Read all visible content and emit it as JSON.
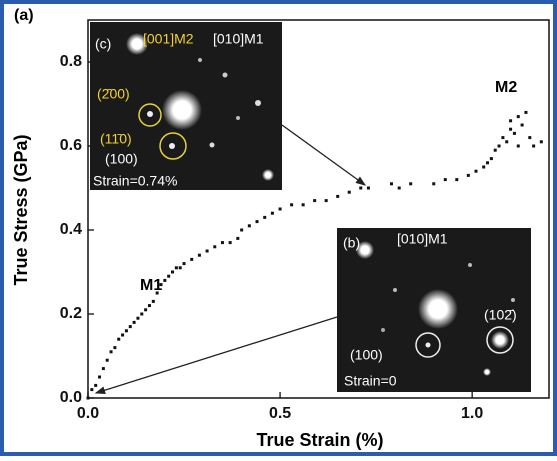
{
  "chart_data": {
    "type": "scatter",
    "panel_label": "(a)",
    "x_label": "True Strain (%)",
    "y_label": "True Stress (GPa)",
    "xlim": [
      0,
      1.2
    ],
    "ylim": [
      0,
      0.9
    ],
    "xticks": [
      {
        "value": 0,
        "label": "0.0"
      },
      0.5,
      {
        "value": 1,
        "label": "1.0"
      }
    ],
    "yticks": [
      {
        "value": 0,
        "label": "0.0"
      },
      0.2,
      0.4,
      0.6,
      0.8
    ],
    "color": "#111111",
    "x": [
      0.0,
      0.01,
      0.02,
      0.03,
      0.04,
      0.05,
      0.06,
      0.07,
      0.08,
      0.09,
      0.1,
      0.11,
      0.12,
      0.13,
      0.14,
      0.15,
      0.16,
      0.17,
      0.18,
      0.19,
      0.2,
      0.21,
      0.22,
      0.23,
      0.24,
      0.25,
      0.27,
      0.29,
      0.31,
      0.33,
      0.35,
      0.37,
      0.39,
      0.4,
      0.42,
      0.44,
      0.46,
      0.48,
      0.5,
      0.53,
      0.56,
      0.59,
      0.62,
      0.65,
      0.68,
      0.71,
      0.73,
      0.79,
      0.81,
      0.84,
      0.9,
      0.93,
      0.96,
      0.99,
      1.01,
      1.03,
      1.04,
      1.05,
      1.06,
      1.07,
      1.08,
      1.09,
      1.1,
      1.1,
      1.11,
      1.12,
      1.12,
      1.13,
      1.14,
      1.15,
      1.16,
      1.18
    ],
    "y": [
      0.0,
      0.02,
      0.03,
      0.05,
      0.07,
      0.09,
      0.11,
      0.12,
      0.14,
      0.15,
      0.16,
      0.17,
      0.18,
      0.19,
      0.2,
      0.21,
      0.22,
      0.23,
      0.25,
      0.27,
      0.28,
      0.29,
      0.3,
      0.31,
      0.31,
      0.32,
      0.33,
      0.34,
      0.35,
      0.36,
      0.37,
      0.37,
      0.38,
      0.4,
      0.41,
      0.42,
      0.43,
      0.44,
      0.45,
      0.46,
      0.46,
      0.47,
      0.47,
      0.48,
      0.49,
      0.5,
      0.5,
      0.51,
      0.5,
      0.51,
      0.51,
      0.52,
      0.52,
      0.53,
      0.54,
      0.55,
      0.56,
      0.57,
      0.59,
      0.6,
      0.62,
      0.61,
      0.64,
      0.66,
      0.63,
      0.67,
      0.6,
      0.65,
      0.68,
      0.62,
      0.6,
      0.61
    ],
    "annotations": [
      "M1",
      "M2"
    ],
    "insets": [
      {
        "label": "(c)",
        "zone_axes": [
          "[001]M2",
          "[010]M1"
        ],
        "spots": [
          "(2̄00)",
          "(11̄0)",
          "(100)"
        ],
        "strain": "Strain=0.74%"
      },
      {
        "label": "(b)",
        "zone_axes": [
          "[010]M1"
        ],
        "spots": [
          "(102̄)",
          "(100)"
        ],
        "strain": "Strain=0"
      }
    ]
  }
}
